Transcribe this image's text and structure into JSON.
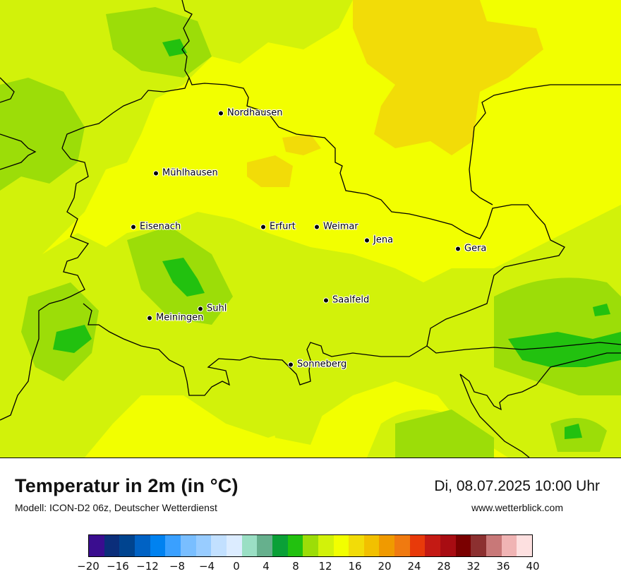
{
  "map": {
    "cities": [
      {
        "name": "Nordhausen"
      },
      {
        "name": "Mühlhausen"
      },
      {
        "name": "Eisenach"
      },
      {
        "name": "Erfurt"
      },
      {
        "name": "Weimar"
      },
      {
        "name": "Jena"
      },
      {
        "name": "Gera"
      },
      {
        "name": "Saalfeld"
      },
      {
        "name": "Suhl"
      },
      {
        "name": "Meiningen"
      },
      {
        "name": "Sonneberg"
      }
    ]
  },
  "footer": {
    "title": "Temperatur in 2m (in °C)",
    "model": "Modell: ICON-D2 06z, Deutscher Wetterdienst",
    "datetime": "Di, 08.07.2025 10:00 Uhr",
    "website": "www.wetterblick.com"
  },
  "legend": {
    "unit": "°C",
    "min": -20,
    "max": 40,
    "step": 2,
    "tick_labels": [
      "−20",
      "−16",
      "−12",
      "−8",
      "−4",
      "0",
      "4",
      "8",
      "12",
      "16",
      "20",
      "24",
      "28",
      "32",
      "36",
      "40"
    ],
    "colors": [
      "#3a0d8f",
      "#0b2e7a",
      "#00448f",
      "#0062c4",
      "#0082f0",
      "#3aa0ff",
      "#79beff",
      "#98ccff",
      "#c2e0ff",
      "#dcecff",
      "#9adfc4",
      "#66b08d",
      "#0aa037",
      "#22c10f",
      "#9cdd08",
      "#d2f20a",
      "#f2ff00",
      "#f2dc08",
      "#f2c000",
      "#f09a00",
      "#f07a10",
      "#e83a0a",
      "#c41a14",
      "#a80c12",
      "#7a0000",
      "#8c3030",
      "#c87878",
      "#f0b4b4",
      "#fde0e0"
    ]
  }
}
